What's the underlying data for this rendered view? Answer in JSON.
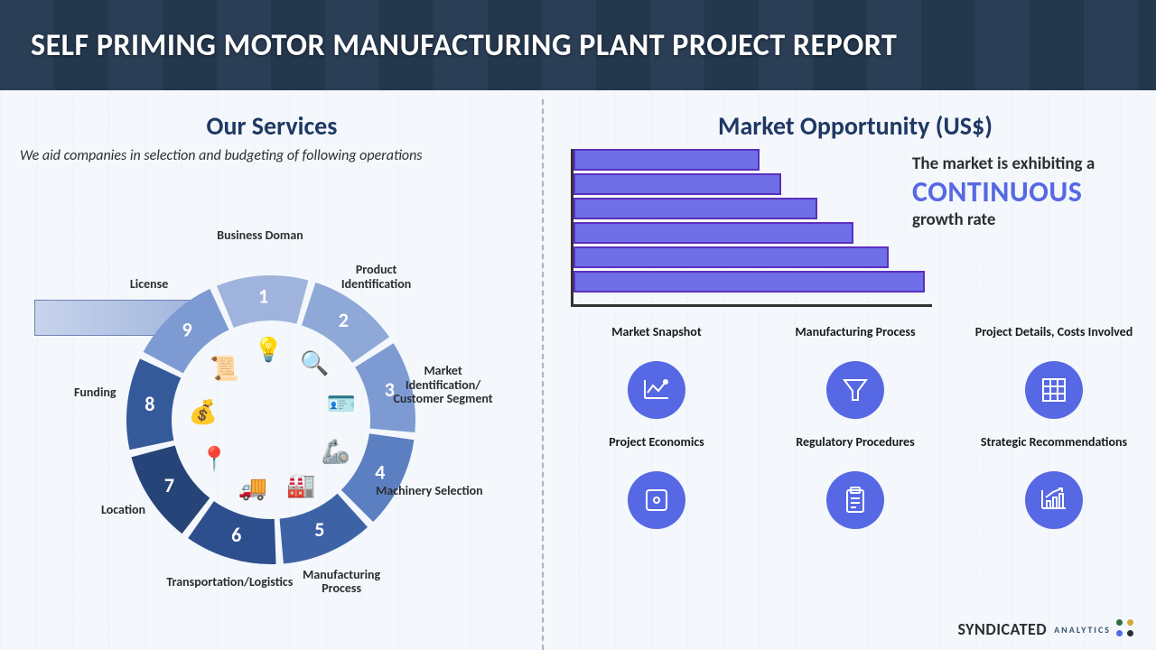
{
  "colors": {
    "title_text": "#ffffff",
    "heading": "#1f3864",
    "body": "#2b2f33",
    "accent_blue": "#5668e3",
    "bar_fill": "#6f6fe8",
    "bar_stroke": "#5b2fbf",
    "axis": "#333333",
    "divider": "#a7b2c2"
  },
  "title": "SELF PRIMING MOTOR MANUFACTURING PLANT PROJECT REPORT",
  "left": {
    "heading": "Our Services",
    "subtitle": "We aid companies in selection and budgeting of following operations",
    "wheel": {
      "inner_r": 110,
      "outer_r": 160,
      "gap_deg": 3,
      "start_deg": -112,
      "segments": [
        {
          "n": "1",
          "label": "Business Doman",
          "fill": "#9fb3dc",
          "icon": "💡"
        },
        {
          "n": "2",
          "label": "Product Identification",
          "fill": "#8ea8d8",
          "icon": "🔍"
        },
        {
          "n": "3",
          "label": "Market Identification/ Customer Segment",
          "fill": "#7d9bd2",
          "icon": "🪪"
        },
        {
          "n": "4",
          "label": "Machinery Selection",
          "fill": "#5c7fc1",
          "icon": "🦾"
        },
        {
          "n": "5",
          "label": "Manufacturing Process",
          "fill": "#3e62a6",
          "icon": "🏭"
        },
        {
          "n": "6",
          "label": "Transportation/Logistics",
          "fill": "#2e4f8e",
          "icon": "🚚"
        },
        {
          "n": "7",
          "label": "Location",
          "fill": "#264478",
          "icon": "📍"
        },
        {
          "n": "8",
          "label": "Funding",
          "fill": "#355a9a",
          "icon": "💰"
        },
        {
          "n": "9",
          "label": "License",
          "fill": "#7d9bd2",
          "icon": "📜"
        }
      ]
    }
  },
  "right": {
    "heading": "Market Opportunity (US$)",
    "chart": {
      "type": "bar-horizontal",
      "bar_fill": "#6f6fe8",
      "bar_stroke": "#5b2fbf",
      "axis_color": "#333333",
      "values_pct": [
        52,
        58,
        68,
        78,
        88,
        98
      ]
    },
    "growth": {
      "line1": "The market is exhibiting a",
      "big": "CONTINUOUS",
      "line3": "growth rate"
    },
    "features": [
      {
        "label": "Market Snapshot",
        "icon": "chart"
      },
      {
        "label": "Manufacturing Process",
        "icon": "funnel"
      },
      {
        "label": "Project Details, Costs Involved",
        "icon": "grid"
      },
      {
        "label": "Project Economics",
        "icon": "puzzle"
      },
      {
        "label": "Regulatory Procedures",
        "icon": "clipboard"
      },
      {
        "label": "Strategic Recommendations",
        "icon": "growth"
      }
    ]
  },
  "brand": {
    "name": "SYNDICATED",
    "sub": "ANALYTICS",
    "dots": [
      "#2b6f3e",
      "#d4a53a",
      "#5668e3",
      "#2b2f33"
    ]
  }
}
